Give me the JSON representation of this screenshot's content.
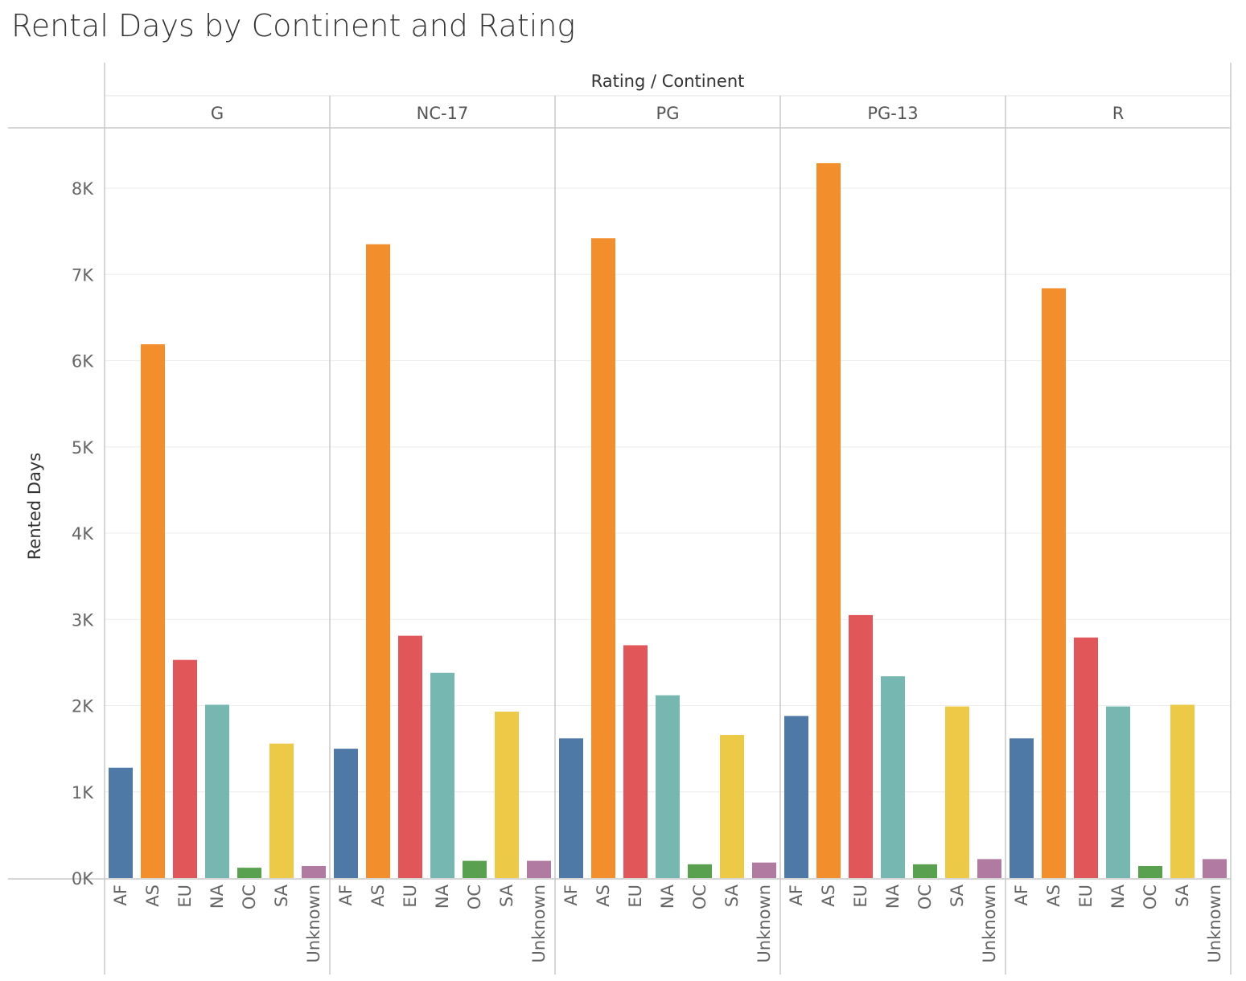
{
  "chart_data": {
    "type": "bar",
    "title": "Rental Days by Continent and Rating",
    "column_header_title": "Rating / Continent",
    "ylabel": "Rented Days",
    "ylim": [
      0,
      8700
    ],
    "y_ticks": [
      {
        "value": 0,
        "label": "0K"
      },
      {
        "value": 1000,
        "label": "1K"
      },
      {
        "value": 2000,
        "label": "2K"
      },
      {
        "value": 3000,
        "label": "3K"
      },
      {
        "value": 4000,
        "label": "4K"
      },
      {
        "value": 5000,
        "label": "5K"
      },
      {
        "value": 6000,
        "label": "6K"
      },
      {
        "value": 7000,
        "label": "7K"
      },
      {
        "value": 8000,
        "label": "8K"
      }
    ],
    "grid": true,
    "categories": [
      "AF",
      "AS",
      "EU",
      "NA",
      "OC",
      "SA",
      "Unknown"
    ],
    "colors": {
      "AF": "#4e79a7",
      "AS": "#f28e2b",
      "EU": "#e15759",
      "NA": "#76b7b2",
      "OC": "#59a14f",
      "SA": "#edc948",
      "Unknown": "#b07aa1"
    },
    "panels": [
      {
        "rating": "G",
        "values": [
          1280,
          6190,
          2530,
          2010,
          120,
          1560,
          140
        ]
      },
      {
        "rating": "NC-17",
        "values": [
          1500,
          7350,
          2810,
          2380,
          200,
          1930,
          200
        ]
      },
      {
        "rating": "PG",
        "values": [
          1620,
          7420,
          2700,
          2120,
          160,
          1660,
          180
        ]
      },
      {
        "rating": "PG-13",
        "values": [
          1880,
          8290,
          3050,
          2340,
          160,
          1990,
          220
        ]
      },
      {
        "rating": "R",
        "values": [
          1620,
          6840,
          2790,
          1990,
          140,
          2010,
          220
        ]
      }
    ]
  }
}
